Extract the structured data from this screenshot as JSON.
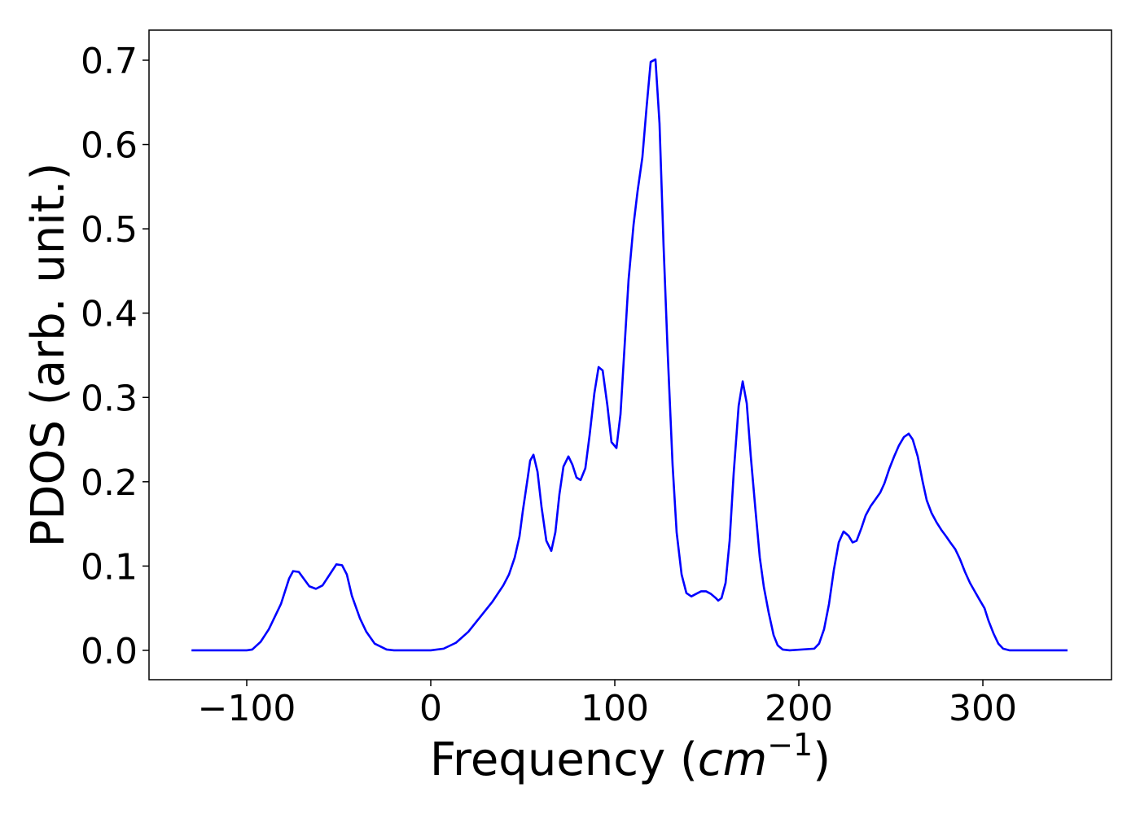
{
  "chart_data": {
    "type": "line",
    "x_label": [
      "Frequency (",
      "cm",
      "−1",
      ")"
    ],
    "y_label": "PDOS (arb. unit.)",
    "x": [
      -130,
      -115,
      -100,
      -97,
      -92.5,
      -88,
      -81.4,
      -77,
      -74.8,
      -71.7,
      -66,
      -62.4,
      -58.8,
      -54.9,
      -51.3,
      -48.2,
      -45.6,
      -42.9,
      -38.5,
      -35,
      -30.5,
      -24,
      -20,
      0,
      7,
      13.7,
      20.4,
      27,
      33.6,
      39.4,
      42.5,
      45.6,
      48.2,
      50,
      52.7,
      54,
      55.8,
      58,
      60.2,
      62.8,
      65.5,
      67.7,
      69.9,
      72.1,
      74.8,
      77,
      79.2,
      81.4,
      84,
      86.3,
      88.9,
      91.2,
      93.4,
      96,
      98.2,
      100.9,
      103.1,
      105.3,
      107.5,
      110.2,
      112.4,
      115,
      117.3,
      119.5,
      122.1,
      124.3,
      126.5,
      128.8,
      131.4,
      133.6,
      136.3,
      138.9,
      141.6,
      144.2,
      146.9,
      149.6,
      152.2,
      154.9,
      156.2,
      158,
      160.2,
      162.4,
      164.6,
      167.3,
      169.5,
      171.7,
      173.9,
      176.5,
      178.8,
      181,
      183.6,
      186.3,
      188.5,
      191.2,
      195,
      208.4,
      211,
      213.7,
      216.4,
      219,
      221.7,
      224.3,
      227,
      229.2,
      231.4,
      234,
      236.3,
      239,
      241.6,
      244.2,
      246.5,
      249.1,
      251.8,
      254.4,
      257.1,
      259.7,
      261.9,
      264.6,
      267.3,
      269.5,
      272.1,
      274.8,
      277.4,
      280.1,
      282.3,
      285,
      287.6,
      290.3,
      293,
      295.6,
      298.2,
      300.9,
      303.1,
      305.8,
      308.4,
      311,
      314.6,
      346
    ],
    "series": [
      {
        "color": "#0000ff",
        "values": [
          0,
          0,
          0,
          0.001,
          0.01,
          0.025,
          0.055,
          0.085,
          0.094,
          0.093,
          0.076,
          0.073,
          0.077,
          0.09,
          0.102,
          0.101,
          0.09,
          0.065,
          0.038,
          0.022,
          0.008,
          0.001,
          0,
          0,
          0.002,
          0.009,
          0.022,
          0.04,
          0.058,
          0.077,
          0.09,
          0.11,
          0.135,
          0.165,
          0.205,
          0.225,
          0.232,
          0.212,
          0.17,
          0.13,
          0.118,
          0.14,
          0.185,
          0.218,
          0.23,
          0.22,
          0.205,
          0.202,
          0.216,
          0.255,
          0.305,
          0.336,
          0.332,
          0.29,
          0.247,
          0.24,
          0.28,
          0.36,
          0.44,
          0.505,
          0.545,
          0.585,
          0.645,
          0.698,
          0.701,
          0.625,
          0.48,
          0.35,
          0.22,
          0.14,
          0.09,
          0.068,
          0.064,
          0.067,
          0.07,
          0.07,
          0.067,
          0.062,
          0.059,
          0.062,
          0.08,
          0.13,
          0.21,
          0.29,
          0.319,
          0.293,
          0.23,
          0.165,
          0.11,
          0.075,
          0.045,
          0.018,
          0.006,
          0.001,
          0,
          0.002,
          0.008,
          0.025,
          0.055,
          0.095,
          0.128,
          0.141,
          0.136,
          0.128,
          0.13,
          0.145,
          0.16,
          0.171,
          0.179,
          0.187,
          0.198,
          0.215,
          0.23,
          0.243,
          0.253,
          0.257,
          0.25,
          0.23,
          0.2,
          0.178,
          0.163,
          0.152,
          0.143,
          0.135,
          0.128,
          0.12,
          0.108,
          0.093,
          0.08,
          0.07,
          0.06,
          0.05,
          0.035,
          0.02,
          0.008,
          0.002,
          0,
          0
        ]
      }
    ],
    "xlim": [
      -153.1,
      369.9
    ],
    "xticks": [
      {
        "value": -100,
        "label": "−100"
      },
      0,
      100,
      200,
      300
    ],
    "ylim": [
      -0.0348,
      0.7357
    ],
    "yticks": [
      {
        "value": 0,
        "label": "0.0"
      },
      0.1,
      0.2,
      0.3,
      0.4,
      0.5,
      0.6,
      0.7
    ],
    "grid": false
  }
}
